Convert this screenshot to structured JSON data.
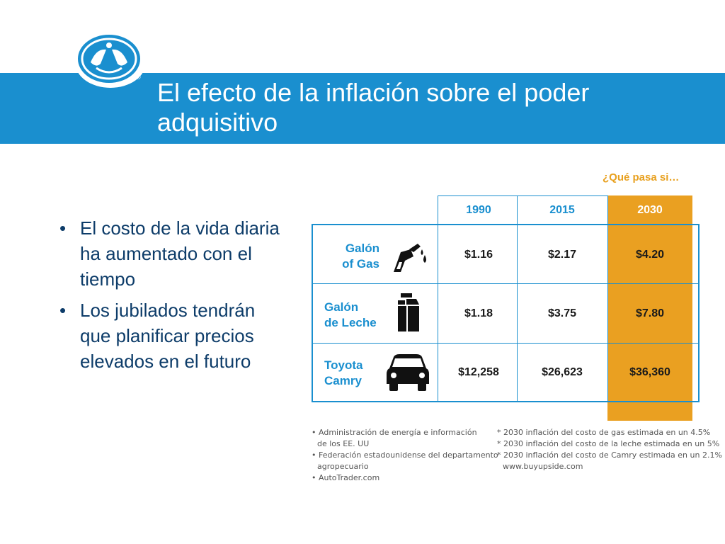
{
  "header": {
    "title": "El efecto de la inflación sobre el poder adquisitivo",
    "registered_mark": "®",
    "brand_color": "#1a8fcf"
  },
  "bullets": [
    "El costo de la vida diaria ha aumentado con el tiempo",
    "Los jubilados tendrán que planificar precios elevados en el futuro"
  ],
  "table": {
    "what_if_label": "¿Qué pasa si…",
    "years": [
      "1990",
      "2015",
      "2030"
    ],
    "accent_color": "#eaa021",
    "rows": [
      {
        "label_line1": "Galón",
        "label_line2": "of Gas",
        "icon": "gas-pump-icon",
        "values": [
          "$1.16",
          "$2.17",
          "$4.20"
        ]
      },
      {
        "label_line1": "Galón",
        "label_line2": "de Leche",
        "icon": "milk-carton-icon",
        "values": [
          "$1.18",
          "$3.75",
          "$7.80"
        ]
      },
      {
        "label_line1": "Toyota",
        "label_line2": "Camry",
        "icon": "car-icon",
        "values": [
          "$12,258",
          "$26,623",
          "$36,360"
        ]
      }
    ]
  },
  "sources": [
    "Administración de energía e información",
    "de los EE. UU",
    "Federación estadounidense del departamento",
    "agropecuario",
    "AutoTrader.com"
  ],
  "footnotes": [
    "* 2030 inflación del costo de gas estimada en un 4.5%",
    "* 2030 inflación del costo de la leche estimada en un 5%",
    "* 2030 inflación del costo de Camry estimada en un 2.1%",
    "www.buyupside.com"
  ]
}
